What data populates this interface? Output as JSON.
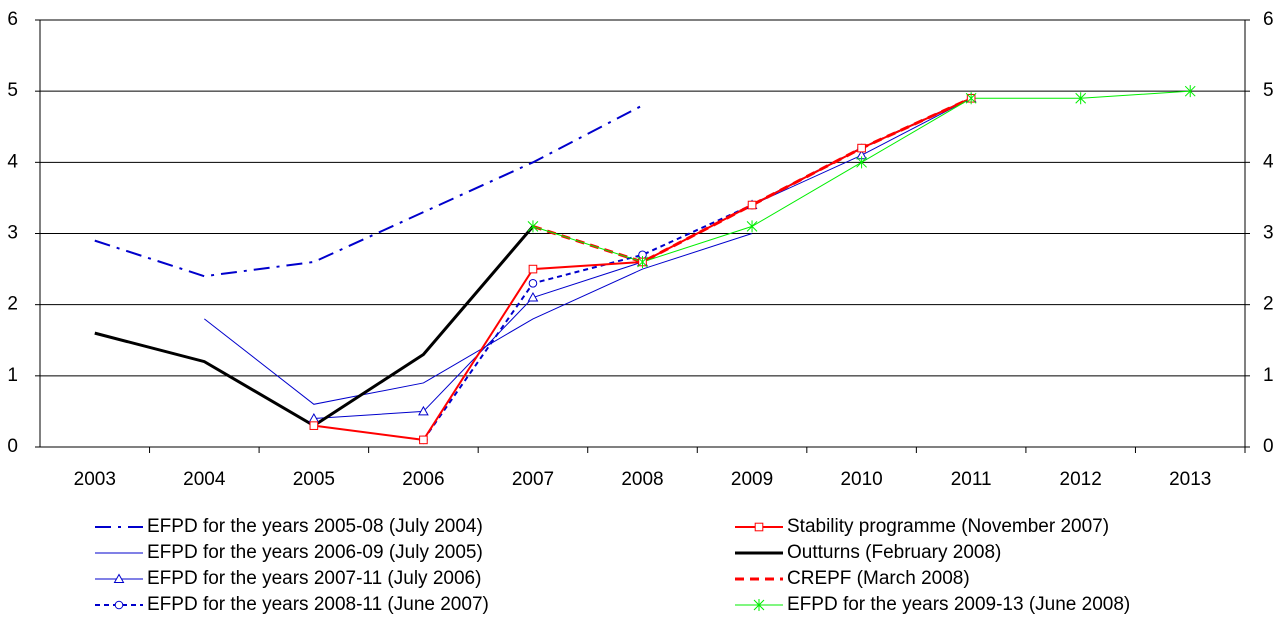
{
  "chart_data": {
    "type": "line",
    "categories": [
      "2003",
      "2004",
      "2005",
      "2006",
      "2007",
      "2008",
      "2009",
      "2010",
      "2011",
      "2012",
      "2013"
    ],
    "ylim": [
      0,
      6
    ],
    "yticks": [
      0,
      1,
      2,
      3,
      4,
      5,
      6
    ],
    "y2lim": [
      0,
      6
    ],
    "y2ticks": [
      0,
      1,
      2,
      3,
      4,
      5,
      6
    ],
    "grid": true,
    "legend": "bottom",
    "series": [
      {
        "name": "EFPD for the years 2005-08 (July 2004)",
        "color": "#0000cc",
        "style": "dash-dot",
        "weight": "medium",
        "marker": "none",
        "values": [
          2.9,
          2.4,
          2.6,
          3.3,
          4.0,
          4.8,
          null,
          null,
          null,
          null,
          null
        ]
      },
      {
        "name": "EFPD for the years 2006-09 (July 2005)",
        "color": "#0000cc",
        "style": "solid",
        "weight": "thin",
        "marker": "none",
        "values": [
          null,
          1.8,
          0.6,
          0.9,
          1.8,
          2.5,
          3.0,
          null,
          null,
          null,
          null
        ]
      },
      {
        "name": "EFPD for the years 2007-11 (July 2006)",
        "color": "#0000cc",
        "style": "solid",
        "weight": "thin",
        "marker": "triangle",
        "values": [
          null,
          null,
          0.4,
          0.5,
          2.1,
          2.6,
          3.4,
          4.1,
          4.9,
          null,
          null
        ]
      },
      {
        "name": "EFPD for the years 2008-11 (June 2007)",
        "color": "#0000cc",
        "style": "dotted",
        "weight": "medium",
        "marker": "circle",
        "values": [
          null,
          null,
          null,
          0.1,
          2.3,
          2.7,
          3.4,
          4.2,
          4.9,
          null,
          null
        ]
      },
      {
        "name": "Stability programme (November 2007)",
        "color": "#ff0000",
        "style": "solid",
        "weight": "medium",
        "marker": "square",
        "values": [
          null,
          null,
          0.3,
          0.1,
          2.5,
          2.6,
          3.4,
          4.2,
          4.9,
          null,
          null
        ]
      },
      {
        "name": "Outturns (February 2008)",
        "color": "#000000",
        "style": "solid",
        "weight": "thick",
        "marker": "none",
        "values": [
          1.6,
          1.2,
          0.3,
          1.3,
          3.1,
          null,
          null,
          null,
          null,
          null,
          null
        ]
      },
      {
        "name": "CREPF (March 2008)",
        "color": "#ff0000",
        "style": "dashed",
        "weight": "thick",
        "marker": "none",
        "values": [
          null,
          null,
          null,
          null,
          3.1,
          2.6,
          3.4,
          4.2,
          4.9,
          null,
          null
        ]
      },
      {
        "name": "EFPD for the years 2009-13 (June 2008)",
        "color": "#00ee00",
        "style": "solid",
        "weight": "thin",
        "marker": "asterisk",
        "values": [
          null,
          null,
          null,
          null,
          3.1,
          2.6,
          3.1,
          4.0,
          4.9,
          4.9,
          5.0
        ]
      }
    ]
  }
}
